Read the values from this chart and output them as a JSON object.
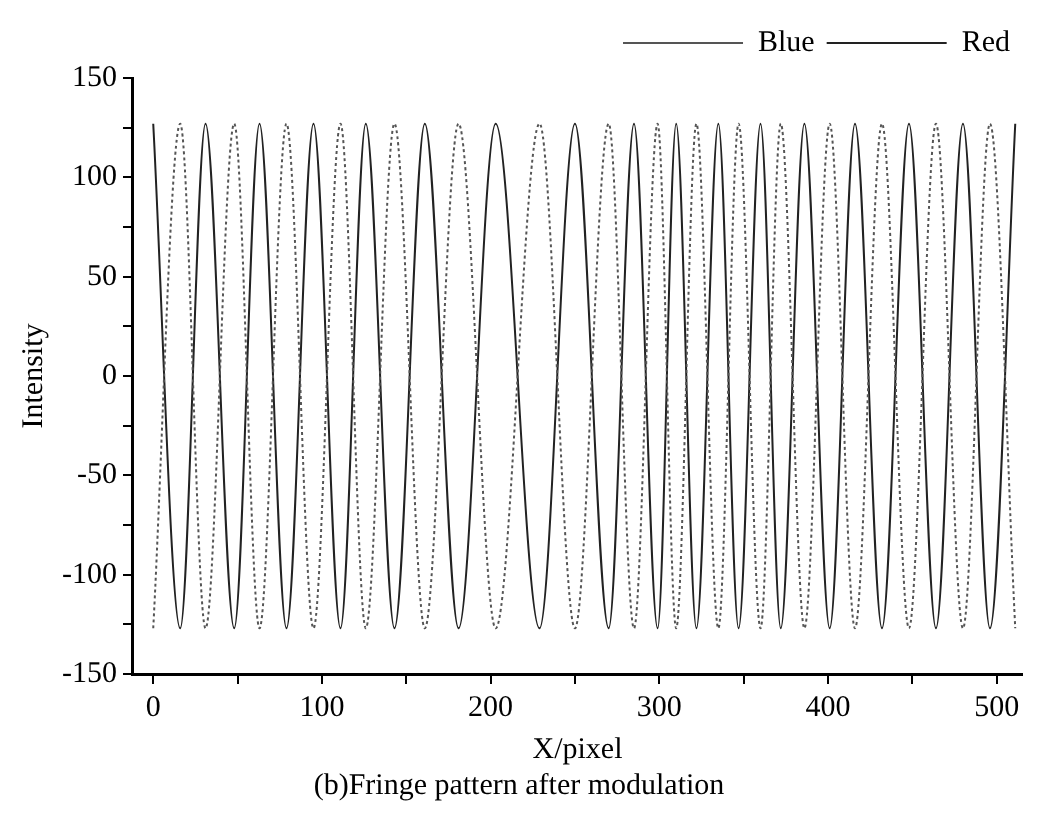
{
  "chart_data": {
    "type": "line",
    "title": "(b)Fringe pattern after modulation",
    "xlabel": "X/pixel",
    "ylabel": "Intensity",
    "x": [
      0,
      16,
      31,
      48,
      63,
      79,
      95,
      111,
      126,
      143,
      161,
      181,
      203,
      229,
      250,
      270,
      285,
      299,
      310,
      322,
      335,
      347,
      360,
      372,
      386,
      401,
      416,
      432,
      448,
      464,
      480,
      496,
      511
    ],
    "series": [
      {
        "name": "Blue",
        "color": "#555555",
        "line_style": "dotted",
        "values": [
          -127,
          127,
          -127,
          127,
          -127,
          127,
          -127,
          127,
          -127,
          127,
          -127,
          127,
          -127,
          127,
          -127,
          127,
          -127,
          127,
          -127,
          127,
          -127,
          127,
          -127,
          127,
          -127,
          127,
          -127,
          127,
          -127,
          127,
          -127,
          127,
          -127
        ]
      },
      {
        "name": "Red",
        "color": "#222222",
        "line_style": "solid",
        "values": [
          127,
          -127,
          127,
          -127,
          127,
          -127,
          127,
          -127,
          127,
          -127,
          127,
          -127,
          127,
          -127,
          127,
          -127,
          127,
          -127,
          127,
          -127,
          127,
          -127,
          127,
          -127,
          127,
          -127,
          127,
          -127,
          127,
          -127,
          127,
          -127,
          127
        ]
      }
    ],
    "xlim": [
      -12,
      515
    ],
    "xticks": [
      0,
      {
        "value": 50,
        "label": null
      },
      100,
      {
        "value": 150,
        "label": null
      },
      200,
      {
        "value": 250,
        "label": null
      },
      300,
      {
        "value": 350,
        "label": null
      },
      400,
      {
        "value": 450,
        "label": null
      },
      500
    ],
    "ylim": [
      -150,
      150
    ],
    "yticks": [
      -150,
      {
        "value": -125,
        "label": null
      },
      -100,
      {
        "value": -75,
        "label": null
      },
      -50,
      {
        "value": -25,
        "label": null
      },
      0,
      {
        "value": 25,
        "label": null
      },
      50,
      {
        "value": 75,
        "label": null
      },
      100,
      {
        "value": 125,
        "label": null
      },
      150
    ],
    "grid": false,
    "legend": "top right",
    "marker": "none"
  }
}
